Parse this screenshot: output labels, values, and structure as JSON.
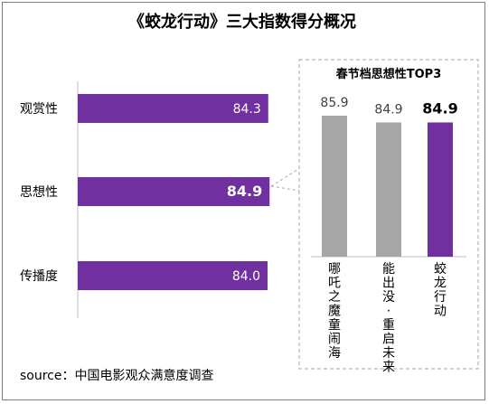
{
  "title": "《蛟龙行动》三大指数得分概况",
  "source": "source：中国电影观众满意度调查",
  "colors": {
    "main_bar": "#7030a0",
    "gray_bar": "#a6a6a6",
    "axis": "#bfbfbf",
    "inset_border": "#a6a6a6"
  },
  "chart_data": [
    {
      "type": "bar",
      "orientation": "horizontal",
      "categories": [
        "观赏性",
        "思想性",
        "传播度"
      ],
      "values": [
        84.3,
        84.9,
        84.0
      ],
      "data_labels": [
        "84.3",
        "84.9",
        "84.0"
      ],
      "highlight": "思想性",
      "xlim": [
        0,
        100
      ]
    },
    {
      "type": "bar",
      "orientation": "vertical",
      "title": "春节档思想性TOP3",
      "categories": [
        "哪吒之魔童闹海",
        "能出没·重启未来",
        "蛟龙行动"
      ],
      "values": [
        85.9,
        84.9,
        84.9
      ],
      "data_labels": [
        "85.9",
        "84.9",
        "84.9"
      ],
      "highlight": "蛟龙行动",
      "ylim": [
        65,
        86
      ]
    }
  ]
}
